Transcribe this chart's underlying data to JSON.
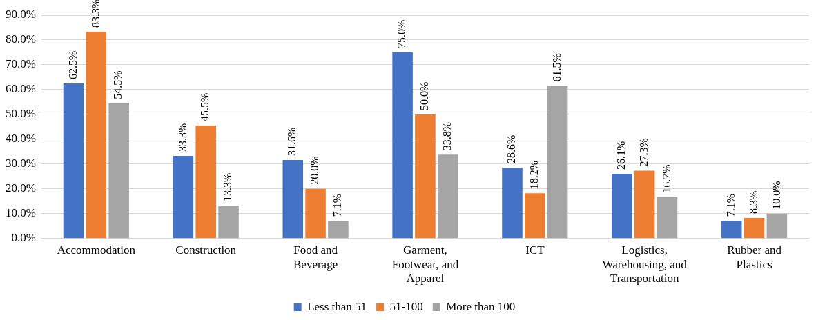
{
  "chart_data": {
    "type": "bar",
    "categories": [
      "Accommodation",
      "Construction",
      "Food and Beverage",
      "Garment, Footwear, and Apparel",
      "ICT",
      "Logistics, Warehousing, and Transportation",
      "Rubber and Plastics"
    ],
    "series": [
      {
        "name": "Less than 51",
        "color": "#4472c4",
        "values": [
          62.5,
          33.3,
          31.6,
          75.0,
          28.6,
          26.1,
          7.1
        ],
        "value_labels": [
          "62.5%",
          "33.3%",
          "31.6%",
          "75.0%",
          "28.6%",
          "26.1%",
          "7.1%"
        ]
      },
      {
        "name": "51-100",
        "color": "#ed7d31",
        "values": [
          83.3,
          45.5,
          20.0,
          50.0,
          18.2,
          27.3,
          8.3
        ],
        "value_labels": [
          "83.3%",
          "45.5%",
          "20.0%",
          "50.0%",
          "18.2%",
          "27.3%",
          "8.3%"
        ]
      },
      {
        "name": "More than 100",
        "color": "#a5a5a5",
        "values": [
          54.5,
          13.3,
          7.1,
          33.8,
          61.5,
          16.7,
          10.0
        ],
        "value_labels": [
          "54.5%",
          "13.3%",
          "7.1%",
          "33.8%",
          "61.5%",
          "16.7%",
          "10.0%"
        ]
      }
    ],
    "ylim": [
      0,
      90
    ],
    "yticks": [
      {
        "value": 0,
        "label": "0.0%"
      },
      {
        "value": 10,
        "label": "10.0%"
      },
      {
        "value": 20,
        "label": "20.0%"
      },
      {
        "value": 30,
        "label": "30.0%"
      },
      {
        "value": 40,
        "label": "40.0%"
      },
      {
        "value": 50,
        "label": "50.0%"
      },
      {
        "value": 60,
        "label": "60.0%"
      },
      {
        "value": 70,
        "label": "70.0%"
      },
      {
        "value": 80,
        "label": "80.0%"
      },
      {
        "value": 90,
        "label": "90.0%"
      }
    ],
    "grid": "y",
    "legend": "bottom"
  }
}
